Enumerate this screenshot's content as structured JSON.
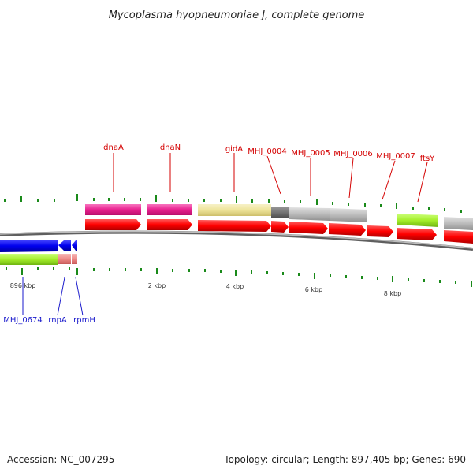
{
  "title": "Mycoplasma hyopneumoniae J, complete genome",
  "forward_genes": [
    "dnaA",
    "dnaN",
    "gidA",
    "MHJ_0004",
    "MHJ_0005",
    "MHJ_0006",
    "MHJ_0007",
    "ftsY"
  ],
  "reverse_genes": [
    "MHJ_0674",
    "rnpA",
    "rpmH"
  ],
  "ticks": [
    "896 kbp",
    "2 kbp",
    "4 kbp",
    "6 kbp",
    "8 kbp"
  ],
  "footer": {
    "accession": "Accession: NC_007295",
    "summary": "Topology: circular; Length: 897,405 bp; Genes: 690"
  },
  "colors": {
    "forward_label": "#d40000",
    "reverse_label": "#1a1acc",
    "cds": "#ff0000",
    "reverse_cds": "#0000ee",
    "magenta_cog": "#e8218f",
    "yellow_cog": "#eee49a",
    "grey_cog": "#bbbbbb",
    "darkgrey_cog": "#777777",
    "green_cog": "#a4ee2a",
    "salmon_cog": "#ef8a88",
    "tick": "#1a8a1a",
    "backbone": "#888888"
  }
}
